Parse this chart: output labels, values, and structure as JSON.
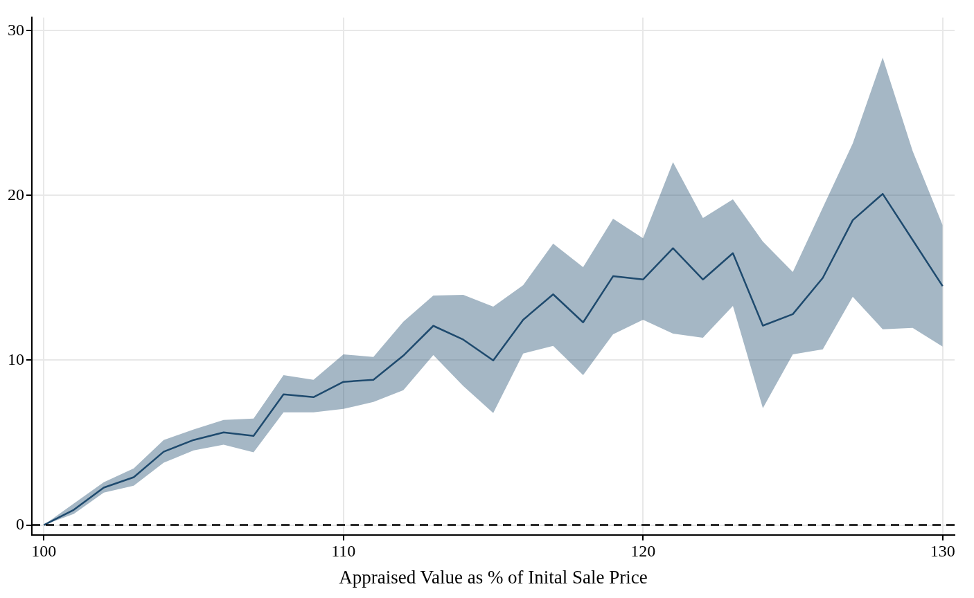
{
  "chart_data": {
    "type": "line",
    "xlabel": "Appraised Value as % of Inital Sale Price",
    "x": [
      100,
      101,
      102,
      103,
      104,
      105,
      106,
      107,
      108,
      109,
      110,
      111,
      112,
      113,
      114,
      115,
      116,
      117,
      118,
      119,
      120,
      121,
      122,
      123,
      124,
      125,
      126,
      127,
      128,
      129,
      130
    ],
    "series": [
      {
        "color": "#1f4a6e",
        "values": [
          0,
          0.92,
          2.27,
          2.9,
          4.45,
          5.16,
          5.62,
          5.41,
          7.93,
          7.76,
          8.69,
          8.81,
          10.28,
          12.09,
          11.25,
          9.99,
          12.46,
          14.0,
          12.3,
          15.1,
          14.9,
          16.8,
          14.9,
          16.5,
          12.1,
          12.8,
          15.0,
          18.5,
          20.1,
          17.3,
          14.5
        ],
        "lower": [
          0,
          0.67,
          1.97,
          2.39,
          3.78,
          4.53,
          4.87,
          4.41,
          6.84,
          6.84,
          7.05,
          7.47,
          8.18,
          10.32,
          8.43,
          6.8,
          10.41,
          10.87,
          9.1,
          11.58,
          12.46,
          11.62,
          11.37,
          13.3,
          7.09,
          10.36,
          10.66,
          13.85,
          11.88,
          11.96,
          10.83
        ],
        "upper": [
          0,
          1.3,
          2.6,
          3.44,
          5.16,
          5.8,
          6.38,
          6.46,
          9.1,
          8.81,
          10.36,
          10.2,
          12.34,
          13.93,
          13.97,
          13.26,
          14.56,
          17.08,
          15.65,
          18.59,
          17.4,
          22.03,
          18.63,
          19.77,
          17.2,
          15.36,
          19.26,
          23.16,
          28.37,
          22.7,
          18.2
        ]
      }
    ],
    "xlim": [
      99.6,
      130.4
    ],
    "ylim": [
      -0.6,
      30.8
    ],
    "xticks": [
      100,
      110,
      120,
      130
    ],
    "yticks": [
      0,
      10,
      20,
      30
    ],
    "grid": true,
    "legend": false,
    "marker": "none",
    "line_style": "solid",
    "ref_lines": [
      {
        "axis": "y",
        "value": 0,
        "label": null,
        "color": "#000000",
        "line_style": "dashed"
      }
    ]
  }
}
